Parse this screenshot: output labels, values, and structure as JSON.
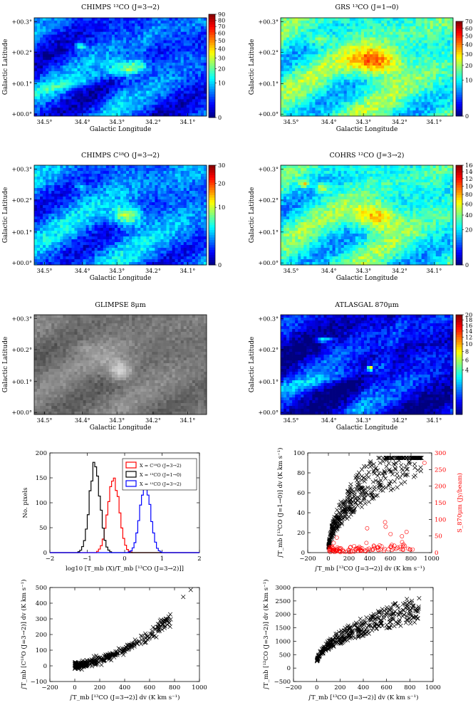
{
  "colors": {
    "jet": [
      "#00007f",
      "#0000ff",
      "#007fff",
      "#00ffff",
      "#7fff7f",
      "#ffff00",
      "#ff7f00",
      "#ff0000",
      "#7f0000"
    ],
    "hist_red": "#ff0000",
    "hist_black": "#000000",
    "hist_blue": "#0000ff"
  },
  "axes_labels": {
    "x_long": "Galactic Longitude",
    "y_lat": "Galactic Latitude",
    "lon_ticks": [
      "34.5°",
      "34.4°",
      "34.3°",
      "34.2°",
      "34.1°"
    ],
    "lat_ticks": [
      "+00.3°",
      "+00.2°",
      "+00.1°",
      "+00.0°"
    ]
  },
  "chart_data": [
    {
      "type": "heatmap",
      "id": "chimps13",
      "title": "CHIMPS ¹³CO (J=3→2)",
      "colorbar_ticks": [
        "90",
        "80",
        "70",
        "60",
        "50",
        "40",
        "30",
        "20",
        "10",
        "0"
      ],
      "colorbar_range": [
        0,
        90
      ],
      "bg": 0.18,
      "sources": [
        [
          0.53,
          0.5,
          0.28,
          0.08,
          0.06
        ],
        [
          0.27,
          0.29,
          0.24,
          0.025,
          0.025
        ]
      ],
      "filaments": true
    },
    {
      "type": "heatmap",
      "id": "grs13",
      "title": "GRS ¹³CO (J=1→0)",
      "colorbar_ticks": [
        "70",
        "60",
        "50",
        "40",
        "30",
        "20",
        "10",
        "0"
      ],
      "colorbar_range": [
        0,
        70
      ],
      "bg": 0.42,
      "sources": [
        [
          0.55,
          0.45,
          0.42,
          0.1,
          0.1
        ],
        [
          0.23,
          0.22,
          0.18,
          0.05,
          0.04
        ]
      ],
      "filaments": false
    },
    {
      "type": "heatmap",
      "id": "chimpsc18",
      "title": "CHIMPS C¹⁸O (J=3→2)",
      "colorbar_ticks": [
        "30",
        "20",
        "10",
        "0"
      ],
      "colorbar_range": [
        0,
        30
      ],
      "bg": 0.24,
      "sources": [
        [
          0.54,
          0.51,
          0.4,
          0.06,
          0.07
        ],
        [
          0.27,
          0.22,
          0.24,
          0.02,
          0.02
        ]
      ],
      "filaments": false
    },
    {
      "type": "heatmap",
      "id": "cohrs12",
      "title": "COHRS ¹²CO (J=3→2)",
      "colorbar_ticks": [
        "160",
        "140",
        "120",
        "100",
        "80",
        "60",
        "40",
        "20",
        "0"
      ],
      "colorbar_range": [
        0,
        160
      ],
      "bg": 0.4,
      "sources": [
        [
          0.55,
          0.52,
          0.38,
          0.09,
          0.09
        ],
        [
          0.24,
          0.23,
          0.28,
          0.03,
          0.03
        ],
        [
          0.14,
          0.19,
          0.3,
          0.02,
          0.02
        ]
      ],
      "filaments": false
    },
    {
      "type": "heatmap",
      "id": "glimpse8",
      "title": "GLIMPSE 8μm",
      "colormap": "gray",
      "sources": [
        [
          0.5,
          0.57,
          0.55,
          0.05,
          0.06
        ],
        [
          0.48,
          0.45,
          0.2,
          0.1,
          0.1
        ],
        [
          0.3,
          0.33,
          0.15,
          0.05,
          0.04
        ]
      ]
    },
    {
      "type": "heatmap",
      "id": "atlasgal",
      "title": "ATLASGAL 870μm",
      "colorbar_ticks": [
        "20",
        "18",
        "16",
        "14",
        "12",
        "10",
        "8",
        "6",
        "4"
      ],
      "colorbar_range": [
        0,
        20
      ],
      "bg": 0.1,
      "sources": [
        [
          0.52,
          0.54,
          0.9,
          0.01,
          0.01
        ],
        [
          0.25,
          0.25,
          0.35,
          0.03,
          0.02
        ]
      ],
      "filaments": true
    },
    {
      "type": "line",
      "id": "histogram",
      "xlabel": "log10 [T_mb (X)/T_mb [¹³CO (J=3→2)]]",
      "ylabel": "No. pixels",
      "xlim": [
        -2,
        2
      ],
      "ylim": [
        0,
        200
      ],
      "xticks": [
        "−2",
        "−1",
        "0",
        "1",
        "2"
      ],
      "yticks": [
        "0",
        "50",
        "100",
        "150",
        "200"
      ],
      "legend_position": "top-right",
      "series": [
        {
          "name": "X = C¹⁸O (J=3→2)",
          "color": "#ff0000",
          "center": -0.3,
          "sigma": 0.15,
          "peak": 152
        },
        {
          "name": "X = ¹³CO (J=1→0)",
          "color": "#000000",
          "center": -0.8,
          "sigma": 0.14,
          "peak": 174
        },
        {
          "name": "X = ¹²CO (J=3→2)",
          "color": "#0000ff",
          "center": 0.55,
          "sigma": 0.14,
          "peak": 137
        }
      ]
    },
    {
      "type": "scatter",
      "id": "scatter_grs_atlas",
      "xlabel": "∫T_mb [¹³CO (J=3→2)] dv (K km s⁻¹)",
      "ylabel": "∫T_mb [¹³CO (J=1→0)] dv (K km s⁻¹)",
      "y2label": "S_870μm (Jy/beam)",
      "xlim": [
        -200,
        1000
      ],
      "ylim": [
        0,
        100
      ],
      "y2lim": [
        0,
        300
      ],
      "xticks": [
        "−200",
        "0",
        "200",
        "400",
        "600",
        "800",
        "1000"
      ],
      "yticks": [
        "0",
        "20",
        "40",
        "60",
        "80",
        "100"
      ],
      "y2ticks": [
        "0",
        "50",
        "100",
        "150",
        "200",
        "250",
        "300"
      ],
      "series": [
        {
          "name": "¹³CO (J=1→0)",
          "marker": "x",
          "color": "#000000",
          "model": "sqrt",
          "a": 3.6,
          "scatter": 0.3,
          "n": 420
        },
        {
          "name": "S_870μm",
          "marker": "o",
          "color": "#ff0000",
          "model": "low",
          "n": 110
        }
      ]
    },
    {
      "type": "scatter",
      "id": "scatter_c18o",
      "xlabel": "∫T_mb [¹³CO (J=3→2)] dv (K km s⁻¹)",
      "ylabel": "∫T_mb [C¹⁸O (J=3→2)] dv (K km s⁻¹)",
      "xlim": [
        -200,
        1000
      ],
      "ylim": [
        -100,
        500
      ],
      "xticks": [
        "−200",
        "0",
        "200",
        "400",
        "600",
        "800",
        "1000"
      ],
      "yticks": [
        "−100",
        "0",
        "100",
        "200",
        "300",
        "400",
        "500"
      ],
      "series": [
        {
          "name": "C¹⁸O (J=3→2)",
          "marker": "x",
          "color": "#000000",
          "model": "quad",
          "n": 320
        }
      ]
    },
    {
      "type": "scatter",
      "id": "scatter_12co",
      "xlabel": "∫T_mb [¹³CO (J=3→2)] dv (K km s⁻¹)",
      "ylabel": "∫T_mb [¹²CO (J=3→2)] dv (K km s⁻¹)",
      "xlim": [
        -200,
        1000
      ],
      "ylim": [
        -500,
        3000
      ],
      "xticks": [
        "−200",
        "0",
        "200",
        "400",
        "600",
        "800",
        "1000"
      ],
      "yticks": [
        "−500",
        "0",
        "500",
        "1000",
        "1500",
        "2000",
        "2500",
        "3000"
      ],
      "series": [
        {
          "name": "¹²CO (J=3→2)",
          "marker": "x",
          "color": "#000000",
          "model": "sqrt12",
          "n": 380
        }
      ]
    }
  ]
}
